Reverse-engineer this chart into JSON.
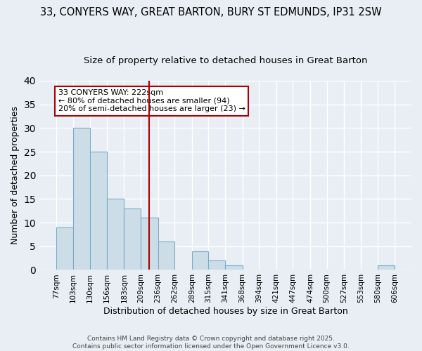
{
  "title1": "33, CONYERS WAY, GREAT BARTON, BURY ST EDMUNDS, IP31 2SW",
  "title2": "Size of property relative to detached houses in Great Barton",
  "xlabel": "Distribution of detached houses by size in Great Barton",
  "ylabel": "Number of detached properties",
  "bar_color": "#ccdde8",
  "bar_edge_color": "#7aaac8",
  "bins": [
    77,
    103,
    130,
    156,
    183,
    209,
    236,
    262,
    289,
    315,
    341,
    368,
    394,
    421,
    447,
    474,
    500,
    527,
    553,
    580,
    606
  ],
  "bin_labels": [
    "77sqm",
    "103sqm",
    "130sqm",
    "156sqm",
    "183sqm",
    "209sqm",
    "236sqm",
    "262sqm",
    "289sqm",
    "315sqm",
    "341sqm",
    "368sqm",
    "394sqm",
    "421sqm",
    "447sqm",
    "474sqm",
    "500sqm",
    "527sqm",
    "553sqm",
    "580sqm",
    "606sqm"
  ],
  "values": [
    9,
    30,
    25,
    15,
    13,
    11,
    6,
    0,
    4,
    2,
    1,
    0,
    0,
    0,
    0,
    0,
    0,
    0,
    0,
    1
  ],
  "vline_x": 222,
  "vline_color": "#aa0000",
  "annotation_text": "33 CONYERS WAY: 222sqm\n← 80% of detached houses are smaller (94)\n20% of semi-detached houses are larger (23) →",
  "annotation_box_color": "#ffffff",
  "annotation_edge_color": "#aa0000",
  "footer": "Contains HM Land Registry data © Crown copyright and database right 2025.\nContains public sector information licensed under the Open Government Licence v3.0.",
  "ylim": [
    0,
    40
  ],
  "yticks": [
    0,
    5,
    10,
    15,
    20,
    25,
    30,
    35,
    40
  ],
  "bg_color": "#e8eef4",
  "grid_color": "#ffffff",
  "title_fontsize": 10.5,
  "subtitle_fontsize": 9.5
}
